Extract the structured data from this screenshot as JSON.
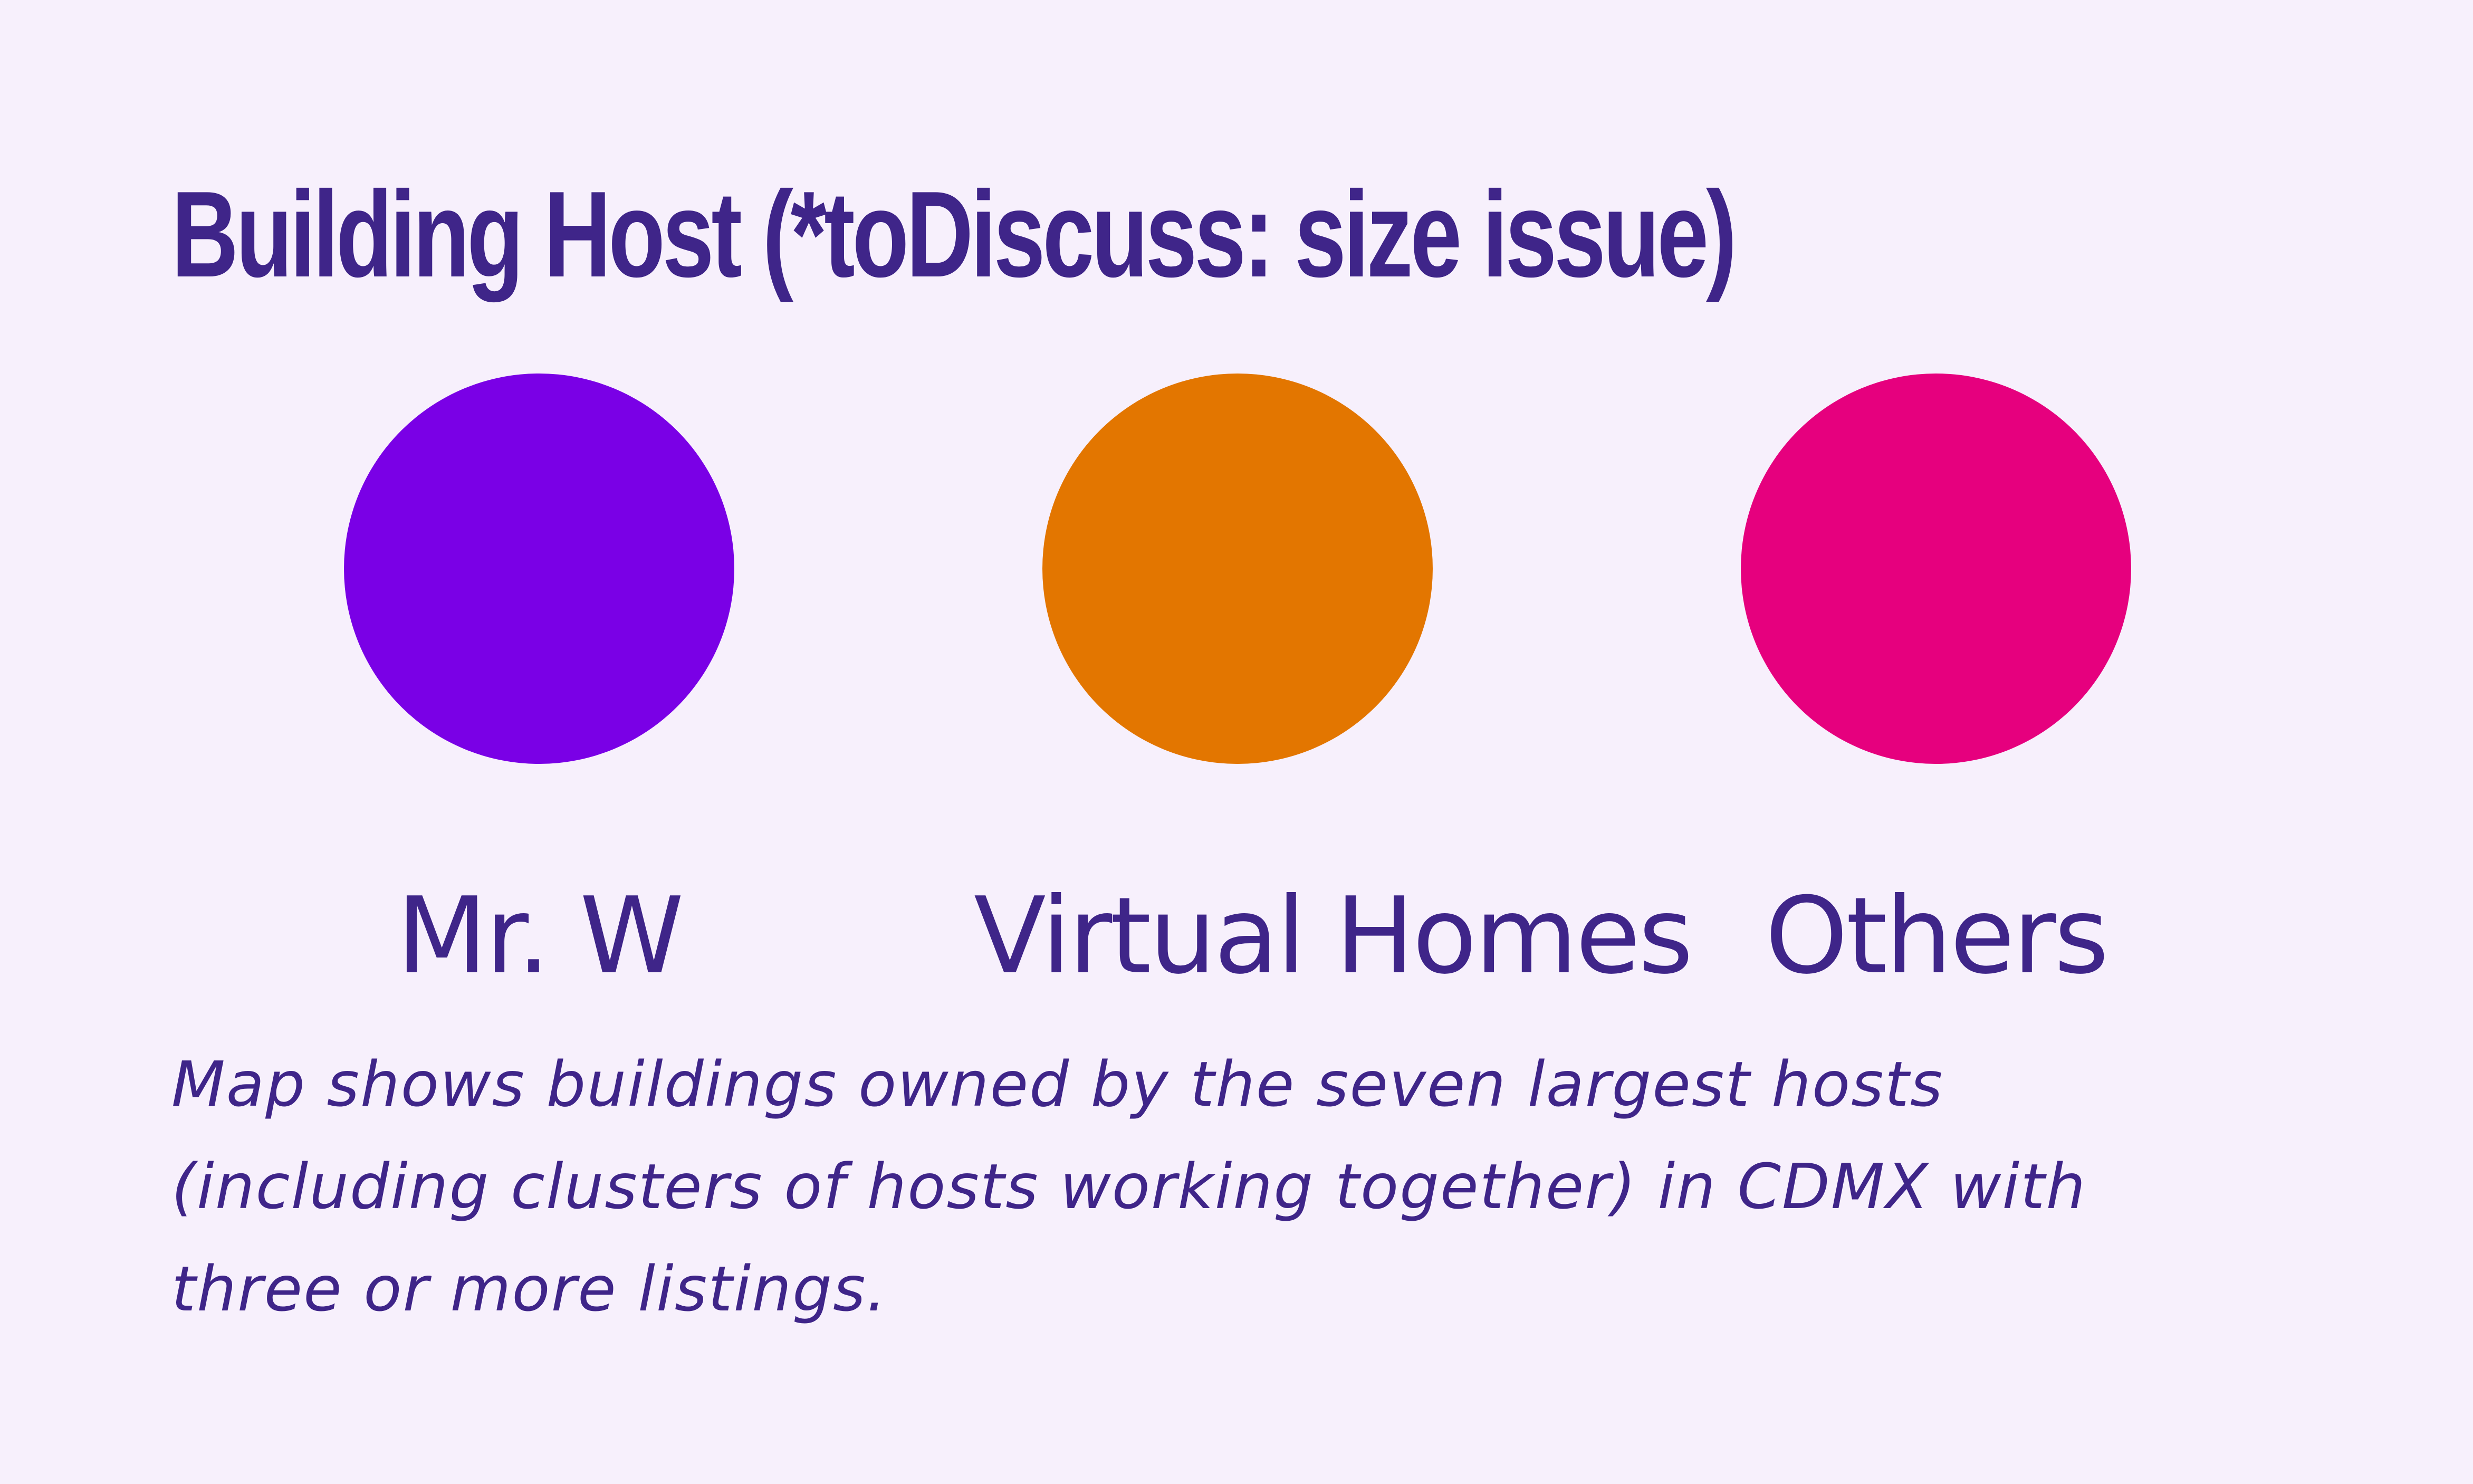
{
  "title": "Building Host (*toDiscuss: size issue)",
  "legend": [
    {
      "label": "Mr. W",
      "color": "#7a00e6"
    },
    {
      "label": "Virtual Homes",
      "color": "#e37600"
    },
    {
      "label": "Others",
      "color": "#e6007e"
    }
  ],
  "note": {
    "lines": [
      "Map shows buildings owned by the seven largest hosts",
      "(including clusters of hosts working together) in CDMX with",
      "three or more listings."
    ]
  }
}
